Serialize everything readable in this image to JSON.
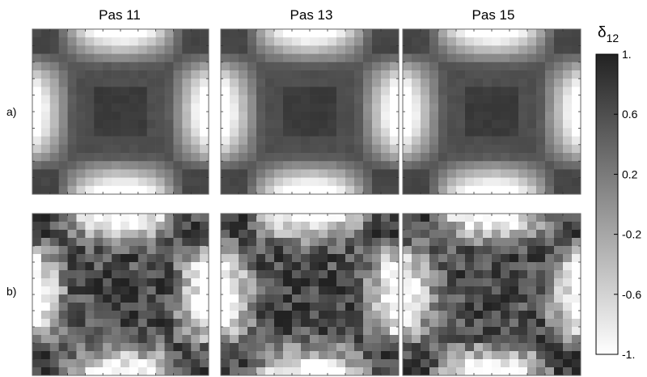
{
  "chart_data": {
    "type": "heatmap",
    "column_titles": [
      "Pas 11",
      "Pas 13",
      "Pas 15"
    ],
    "row_labels": [
      "a)",
      "b)"
    ],
    "colorbar": {
      "title_base": "δ",
      "title_sub": "12",
      "range": [
        -1,
        1
      ],
      "tick_labels": [
        "1.",
        "0.6",
        "0.2",
        "-0.2",
        "-0.6",
        "-1."
      ],
      "tick_values": [
        1,
        0.6,
        0.2,
        -0.2,
        -0.6,
        -1
      ],
      "colormap": "gray",
      "high_color": "#222222",
      "low_color": "#ffffff"
    },
    "grid": "on",
    "panels": [
      {
        "row": "a)",
        "column": "Pas 11",
        "pattern": "smooth",
        "cells": 20
      },
      {
        "row": "a)",
        "column": "Pas 13",
        "pattern": "smooth",
        "cells": 20
      },
      {
        "row": "a)",
        "column": "Pas 15",
        "pattern": "smooth",
        "cells": 20
      },
      {
        "row": "b)",
        "column": "Pas 11",
        "pattern": "noisy",
        "cells": 20
      },
      {
        "row": "b)",
        "column": "Pas 13",
        "pattern": "noisy",
        "cells": 20
      },
      {
        "row": "b)",
        "column": "Pas 15",
        "pattern": "noisy",
        "cells": 20
      }
    ]
  }
}
